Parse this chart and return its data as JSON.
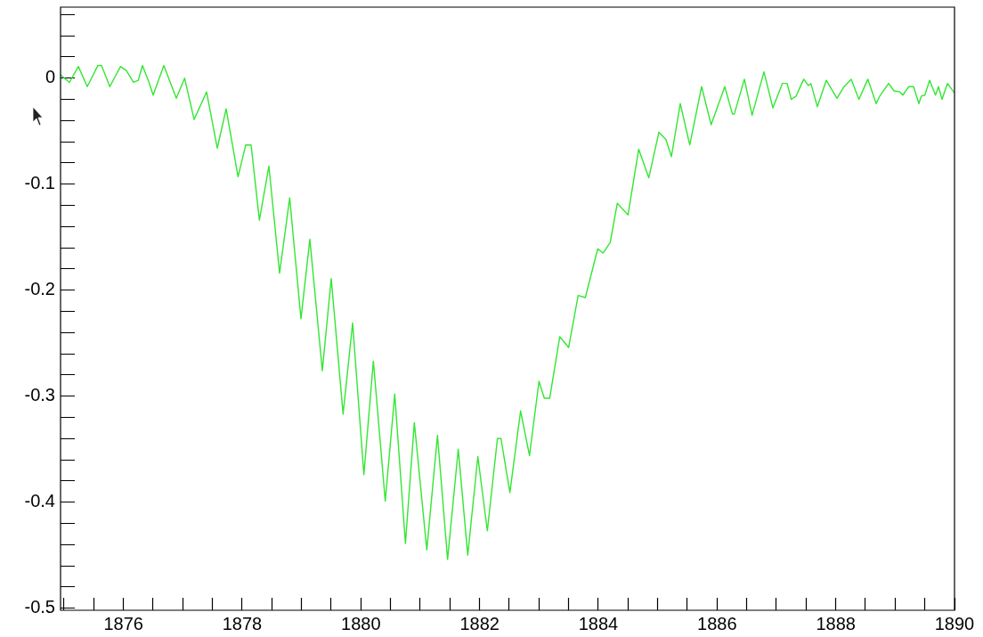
{
  "chart_data": {
    "type": "line",
    "color": "#33e633",
    "marker": "none",
    "line_style": "solid",
    "grid": false,
    "legend": false,
    "xlim": [
      1874.94,
      1890
    ],
    "ylim": [
      -0.502,
      0.067
    ],
    "xticks": [
      {
        "value": 1875,
        "label": null
      },
      {
        "value": 1875.5,
        "label": null
      },
      1876,
      {
        "value": 1876.5,
        "label": null
      },
      {
        "value": 1877,
        "label": null
      },
      {
        "value": 1877.5,
        "label": null
      },
      1878,
      {
        "value": 1878.5,
        "label": null
      },
      {
        "value": 1879,
        "label": null
      },
      {
        "value": 1879.5,
        "label": null
      },
      1880,
      {
        "value": 1880.5,
        "label": null
      },
      {
        "value": 1881,
        "label": null
      },
      {
        "value": 1881.5,
        "label": null
      },
      1882,
      {
        "value": 1882.5,
        "label": null
      },
      {
        "value": 1883,
        "label": null
      },
      {
        "value": 1883.5,
        "label": null
      },
      1884,
      {
        "value": 1884.5,
        "label": null
      },
      {
        "value": 1885,
        "label": null
      },
      {
        "value": 1885.5,
        "label": null
      },
      1886,
      {
        "value": 1886.5,
        "label": null
      },
      {
        "value": 1887,
        "label": null
      },
      {
        "value": 1887.5,
        "label": null
      },
      1888,
      {
        "value": 1888.5,
        "label": null
      },
      {
        "value": 1889,
        "label": null
      },
      {
        "value": 1889.5,
        "label": null
      },
      1890
    ],
    "yticks": [
      {
        "value": 0.06,
        "label": null
      },
      {
        "value": 0.04,
        "label": null
      },
      {
        "value": 0.02,
        "label": null
      },
      0,
      {
        "value": -0.02,
        "label": null
      },
      {
        "value": -0.04,
        "label": null
      },
      {
        "value": -0.06,
        "label": null
      },
      {
        "value": -0.08,
        "label": null
      },
      -0.1,
      {
        "value": -0.12,
        "label": null
      },
      {
        "value": -0.14,
        "label": null
      },
      {
        "value": -0.16,
        "label": null
      },
      {
        "value": -0.18,
        "label": null
      },
      -0.2,
      {
        "value": -0.22,
        "label": null
      },
      {
        "value": -0.24,
        "label": null
      },
      {
        "value": -0.26,
        "label": null
      },
      {
        "value": -0.28,
        "label": null
      },
      -0.3,
      {
        "value": -0.32,
        "label": null
      },
      {
        "value": -0.34,
        "label": null
      },
      {
        "value": -0.36,
        "label": null
      },
      {
        "value": -0.38,
        "label": null
      },
      -0.4,
      {
        "value": -0.42,
        "label": null
      },
      {
        "value": -0.44,
        "label": null
      },
      {
        "value": -0.46,
        "label": null
      },
      {
        "value": -0.48,
        "label": null
      },
      -0.5
    ],
    "x": [
      1874.94,
      1875.09,
      1875.24,
      1875.39,
      1875.57,
      1875.63,
      1875.77,
      1875.95,
      1876.05,
      1876.17,
      1876.25,
      1876.32,
      1876.43,
      1876.5,
      1876.68,
      1876.89,
      1877.03,
      1877.19,
      1877.4,
      1877.58,
      1877.73,
      1877.93,
      1878.06,
      1878.15,
      1878.29,
      1878.45,
      1878.63,
      1878.8,
      1878.99,
      1879.14,
      1879.35,
      1879.5,
      1879.7,
      1879.86,
      1880.05,
      1880.21,
      1880.41,
      1880.57,
      1880.75,
      1880.9,
      1881.11,
      1881.29,
      1881.46,
      1881.64,
      1881.8,
      1881.97,
      1882.13,
      1882.3,
      1882.36,
      1882.51,
      1882.69,
      1882.84,
      1883.0,
      1883.09,
      1883.18,
      1883.35,
      1883.5,
      1883.66,
      1883.78,
      1883.99,
      1884.08,
      1884.2,
      1884.32,
      1884.5,
      1884.68,
      1884.85,
      1885.02,
      1885.14,
      1885.23,
      1885.38,
      1885.54,
      1885.74,
      1885.9,
      1886.13,
      1886.26,
      1886.29,
      1886.46,
      1886.59,
      1886.79,
      1886.94,
      1887.1,
      1887.18,
      1887.25,
      1887.33,
      1887.46,
      1887.54,
      1887.58,
      1887.69,
      1887.84,
      1888.02,
      1888.14,
      1888.26,
      1888.39,
      1888.54,
      1888.68,
      1888.74,
      1888.89,
      1888.98,
      1889.08,
      1889.13,
      1889.23,
      1889.31,
      1889.4,
      1889.44,
      1889.5,
      1889.58,
      1889.68,
      1889.73,
      1889.79,
      1889.88,
      1890.0
    ],
    "values": [
      0.003,
      -0.004,
      0.011,
      -0.008,
      0.012,
      0.012,
      -0.008,
      0.011,
      0.007,
      -0.004,
      -0.002,
      0.012,
      -0.004,
      -0.016,
      0.012,
      -0.019,
      0,
      -0.039,
      -0.013,
      -0.066,
      -0.029,
      -0.093,
      -0.063,
      -0.063,
      -0.134,
      -0.083,
      -0.184,
      -0.113,
      -0.227,
      -0.152,
      -0.276,
      -0.189,
      -0.317,
      -0.231,
      -0.374,
      -0.267,
      -0.399,
      -0.298,
      -0.439,
      -0.325,
      -0.445,
      -0.337,
      -0.454,
      -0.35,
      -0.45,
      -0.357,
      -0.427,
      -0.34,
      -0.34,
      -0.391,
      -0.314,
      -0.356,
      -0.286,
      -0.302,
      -0.302,
      -0.244,
      -0.254,
      -0.205,
      -0.207,
      -0.161,
      -0.165,
      -0.155,
      -0.118,
      -0.129,
      -0.067,
      -0.094,
      -0.051,
      -0.058,
      -0.074,
      -0.024,
      -0.063,
      -0.008,
      -0.044,
      -0.008,
      -0.034,
      -0.034,
      -0.001,
      -0.035,
      0.006,
      -0.028,
      -0.005,
      -0.005,
      -0.02,
      -0.017,
      -0.001,
      -0.007,
      -0.005,
      -0.027,
      -0.002,
      -0.019,
      -0.008,
      -0.001,
      -0.02,
      -0.001,
      -0.024,
      -0.017,
      -0.005,
      -0.012,
      -0.013,
      -0.016,
      -0.008,
      -0.008,
      -0.024,
      -0.017,
      -0.016,
      -0.002,
      -0.016,
      -0.008,
      -0.02,
      -0.005,
      -0.014
    ]
  }
}
